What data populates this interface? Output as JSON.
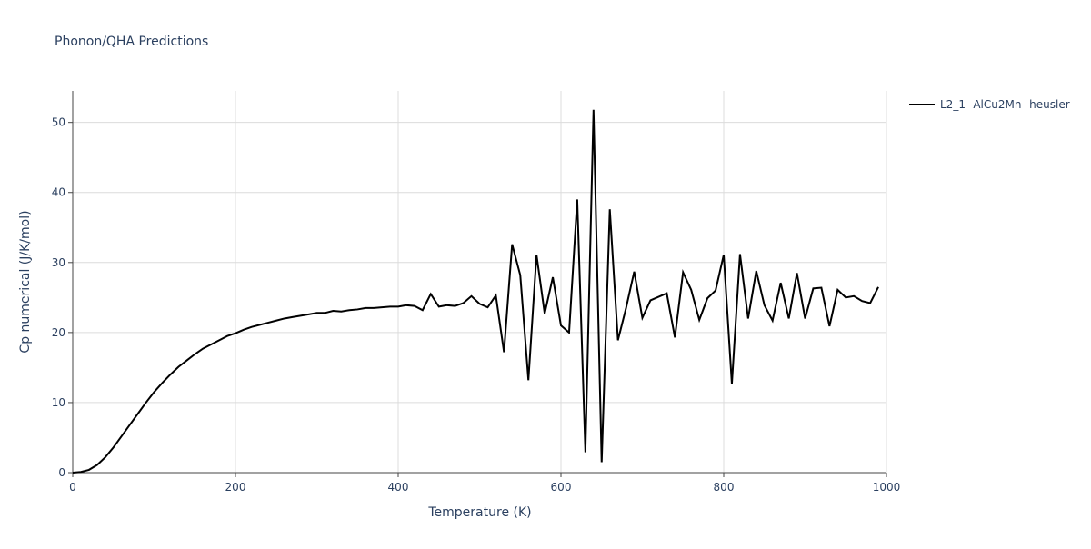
{
  "chart_data": {
    "type": "line",
    "title": "Phonon/QHA Predictions",
    "x_label": "Temperature (K)",
    "y_label": "Cp numerical (J/K/mol)",
    "x": [
      0,
      10,
      20,
      30,
      40,
      50,
      60,
      70,
      80,
      90,
      100,
      110,
      120,
      130,
      140,
      150,
      160,
      170,
      180,
      190,
      200,
      210,
      220,
      230,
      240,
      250,
      260,
      270,
      280,
      290,
      300,
      310,
      320,
      330,
      340,
      350,
      360,
      370,
      380,
      390,
      400,
      410,
      420,
      430,
      440,
      450,
      460,
      470,
      480,
      490,
      500,
      510,
      520,
      530,
      540,
      550,
      560,
      570,
      580,
      590,
      600,
      610,
      620,
      630,
      640,
      650,
      660,
      670,
      680,
      690,
      700,
      710,
      720,
      730,
      740,
      750,
      760,
      770,
      780,
      790,
      800,
      810,
      820,
      830,
      840,
      850,
      860,
      870,
      880,
      890,
      900,
      910,
      920,
      930,
      940,
      950,
      960,
      970,
      980,
      990
    ],
    "series": [
      {
        "name": "L2_1--AlCu2Mn--heusler",
        "color": "#000000",
        "values": [
          0,
          0.1,
          0.4,
          1.1,
          2.2,
          3.6,
          5.2,
          6.8,
          8.4,
          10.0,
          11.5,
          12.8,
          14.0,
          15.1,
          16.0,
          16.9,
          17.7,
          18.3,
          18.9,
          19.5,
          19.9,
          20.4,
          20.8,
          21.1,
          21.4,
          21.7,
          22.0,
          22.2,
          22.4,
          22.6,
          22.8,
          22.8,
          23.1,
          23.0,
          23.2,
          23.3,
          23.5,
          23.5,
          23.6,
          23.7,
          23.7,
          23.9,
          23.8,
          23.2,
          25.5,
          23.7,
          23.9,
          23.8,
          24.2,
          25.2,
          24.1,
          23.6,
          25.3,
          17.2,
          32.6,
          28.2,
          13.2,
          31.1,
          22.7,
          27.9,
          21.0,
          20.0,
          39.0,
          2.9,
          51.8,
          1.5,
          37.6,
          18.9,
          23.5,
          28.7,
          22.1,
          24.6,
          25.1,
          25.6,
          19.3,
          28.6,
          26.1,
          21.8,
          24.9,
          26.0,
          31.1,
          12.7,
          31.2,
          22.0,
          28.8,
          23.9,
          21.7,
          27.1,
          22.0,
          28.5,
          22.0,
          26.3,
          26.4,
          20.9,
          26.1,
          25.0,
          25.2,
          24.5,
          24.2,
          26.5
        ]
      }
    ],
    "xlim": [
      0,
      1000
    ],
    "xticks": [
      0,
      200,
      400,
      600,
      800,
      1000
    ],
    "ylim": [
      0,
      54.5
    ],
    "yticks": [
      0,
      10,
      20,
      30,
      40,
      50
    ],
    "grid": true,
    "legend": "right"
  }
}
